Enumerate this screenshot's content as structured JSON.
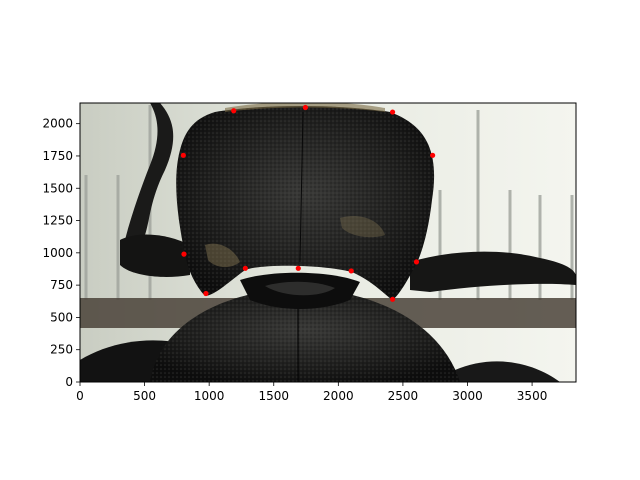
{
  "chart_data": {
    "type": "scatter",
    "title": "",
    "xlabel": "",
    "ylabel": "",
    "xlim": [
      0,
      3840
    ],
    "ylim": [
      0,
      2160
    ],
    "grid": false,
    "legend": "none",
    "background_image": "macro photograph of a dark beetle pronotum (thorax) over a ruler scale",
    "marker_color": "#ff0000",
    "x_ticks": [
      {
        "value": 0,
        "label": "0"
      },
      {
        "value": 500,
        "label": "500"
      },
      {
        "value": 1000,
        "label": "1000"
      },
      {
        "value": 1500,
        "label": "1500"
      },
      {
        "value": 2000,
        "label": "2000"
      },
      {
        "value": 2500,
        "label": "2500"
      },
      {
        "value": 3000,
        "label": "3000"
      },
      {
        "value": 3500,
        "label": "3500"
      }
    ],
    "y_ticks": [
      {
        "value": 0,
        "label": "0"
      },
      {
        "value": 250,
        "label": "250"
      },
      {
        "value": 500,
        "label": "500"
      },
      {
        "value": 750,
        "label": "750"
      },
      {
        "value": 1000,
        "label": "1000"
      },
      {
        "value": 1250,
        "label": "1250"
      },
      {
        "value": 1500,
        "label": "1500"
      },
      {
        "value": 1750,
        "label": "1750"
      },
      {
        "value": 2000,
        "label": "2000"
      }
    ],
    "points": [
      {
        "x": 1190,
        "y": 2100
      },
      {
        "x": 1745,
        "y": 2125
      },
      {
        "x": 2420,
        "y": 2090
      },
      {
        "x": 800,
        "y": 1755
      },
      {
        "x": 2730,
        "y": 1755
      },
      {
        "x": 805,
        "y": 990
      },
      {
        "x": 2605,
        "y": 930
      },
      {
        "x": 1280,
        "y": 880
      },
      {
        "x": 1690,
        "y": 880
      },
      {
        "x": 2100,
        "y": 860
      },
      {
        "x": 975,
        "y": 685
      },
      {
        "x": 2420,
        "y": 640
      }
    ]
  }
}
